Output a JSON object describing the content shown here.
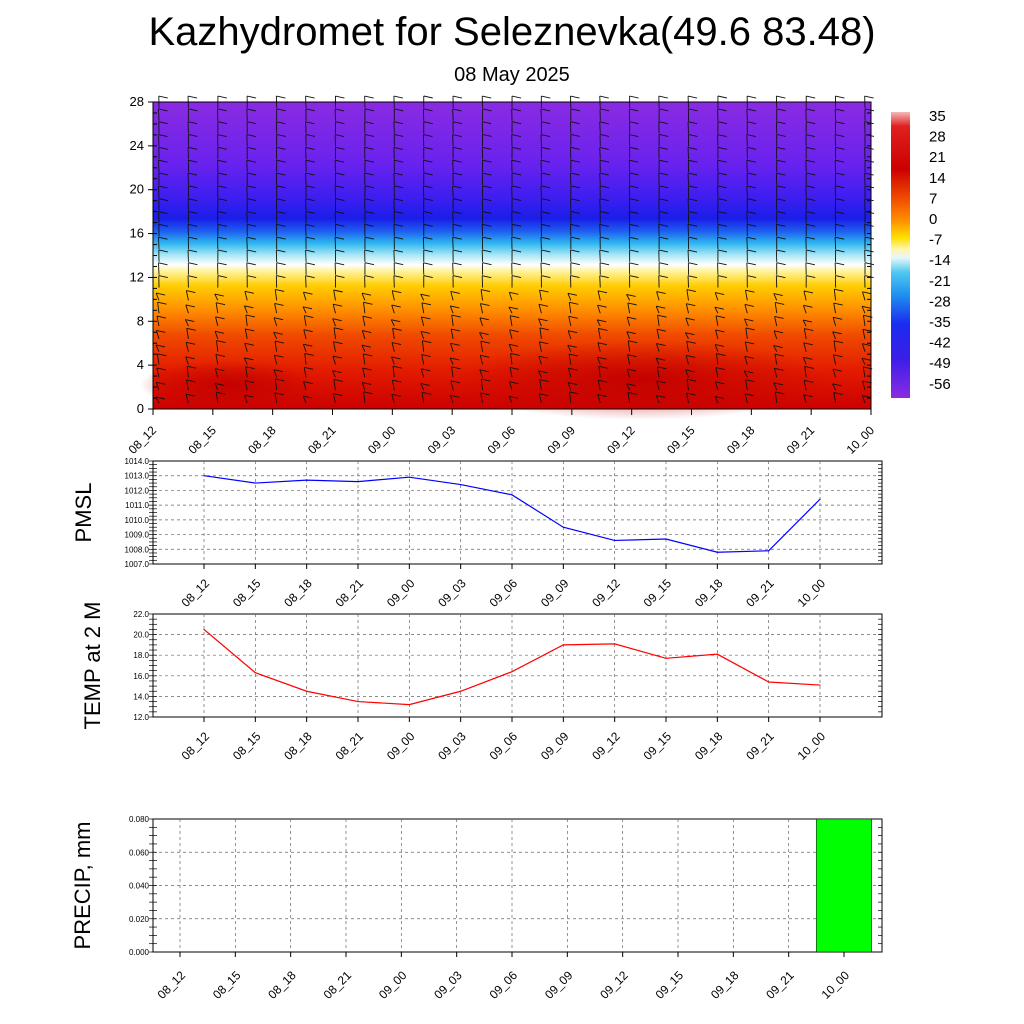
{
  "title": "Kazhydromet for Seleznevka(49.6 83.48)",
  "subtitle": "08 May 2025",
  "chart_data": [
    {
      "type": "heatmap",
      "x_ticks": [
        "08_12",
        "08_15",
        "08_18",
        "08_21",
        "09_00",
        "09_03",
        "09_06",
        "09_09",
        "09_12",
        "09_15",
        "09_18",
        "09_21",
        "10_00"
      ],
      "y_ticks": [
        "0",
        "4",
        "8",
        "12",
        "16",
        "20",
        "24",
        "28"
      ],
      "ylim": [
        0,
        28
      ],
      "colorbar_labels": [
        "35",
        "28",
        "21",
        "14",
        "7",
        "0",
        "-7",
        "-14",
        "-21",
        "-28",
        "-35",
        "-42",
        "-49",
        "-56"
      ],
      "colors": {
        "warm": "#e02000",
        "hot": "#c80000",
        "cold": "#8a2be2",
        "mid": "#ffffff"
      },
      "wind_barbs": true
    },
    {
      "type": "line",
      "ylabel": "PMSL",
      "categories": [
        "08_12",
        "08_15",
        "08_18",
        "08_21",
        "09_00",
        "09_03",
        "09_06",
        "09_09",
        "09_12",
        "09_15",
        "09_18",
        "09_21",
        "10_00"
      ],
      "values": [
        1013.0,
        1012.5,
        1012.7,
        1012.6,
        1012.9,
        1012.4,
        1011.7,
        1009.5,
        1008.6,
        1008.7,
        1007.8,
        1007.9,
        1011.4
      ],
      "ylim": [
        1007.0,
        1014.0
      ],
      "y_ticks": [
        "1007.0",
        "1008.0",
        "1009.0",
        "1010.0",
        "1011.0",
        "1012.0",
        "1013.0",
        "1014.0"
      ],
      "color": "#0000ff",
      "grid": true
    },
    {
      "type": "line",
      "ylabel": "TEMP at 2 M",
      "categories": [
        "08_12",
        "08_15",
        "08_18",
        "08_21",
        "09_00",
        "09_03",
        "09_06",
        "09_09",
        "09_12",
        "09_15",
        "09_18",
        "09_21",
        "10_00"
      ],
      "values": [
        20.5,
        16.3,
        14.5,
        13.5,
        13.2,
        14.5,
        16.4,
        19.0,
        19.1,
        17.7,
        18.1,
        15.4,
        15.1
      ],
      "ylim": [
        12.0,
        22.0
      ],
      "y_ticks": [
        "12.0",
        "14.0",
        "16.0",
        "18.0",
        "20.0",
        "22.0"
      ],
      "color": "#ff0000",
      "grid": true
    },
    {
      "type": "bar",
      "ylabel": "PRECIP, mm",
      "categories": [
        "08_12",
        "08_15",
        "08_18",
        "08_21",
        "09_00",
        "09_03",
        "09_06",
        "09_09",
        "09_12",
        "09_15",
        "09_18",
        "09_21",
        "10_00"
      ],
      "values": [
        0,
        0,
        0,
        0,
        0,
        0,
        0,
        0,
        0,
        0,
        0,
        0,
        0.08
      ],
      "ylim": [
        0.0,
        0.08
      ],
      "y_ticks": [
        "0.000",
        "0.020",
        "0.040",
        "0.060",
        "0.080"
      ],
      "color": "#00ff00",
      "grid": true
    }
  ]
}
